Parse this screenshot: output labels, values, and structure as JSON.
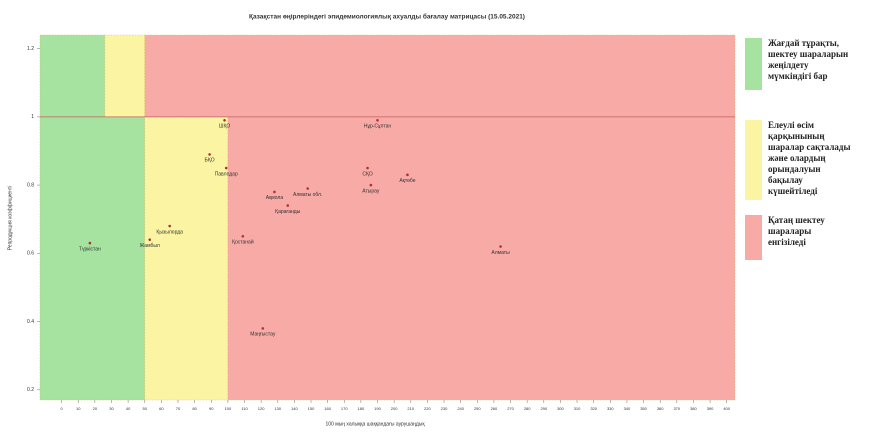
{
  "chart_data": {
    "type": "scatter",
    "title": "Қазақстан өңірлеріндегі эпидемиологиялық ахуалды бағалау матрицасы (15.05.2021)",
    "x_label": "100 мың халыққа шаққандағы аурушаңдық",
    "y_label": "Репродукция коэффициенті",
    "xlim": [
      -13,
      405
    ],
    "ylim": [
      0.17,
      1.24
    ],
    "xticks": [
      0,
      10,
      20,
      30,
      40,
      50,
      60,
      70,
      80,
      90,
      100,
      110,
      120,
      130,
      140,
      150,
      160,
      170,
      180,
      190,
      200,
      210,
      220,
      230,
      240,
      250,
      260,
      270,
      280,
      290,
      300,
      310,
      320,
      330,
      340,
      350,
      360,
      370,
      380,
      390,
      400
    ],
    "yticks": [
      0.2,
      0.4,
      0.6,
      0.8,
      1,
      1.2
    ],
    "hline": 1,
    "point_color": "#b03030",
    "zones": [
      {
        "name": "Жағдай тұрақты, шектеу шараларын жеңілдету мүмкіндігі бар",
        "color": "#a6e3a1",
        "rects": [
          [
            -13,
            50,
            0.17,
            1
          ],
          [
            -13,
            26,
            1,
            1.24
          ]
        ]
      },
      {
        "name": "Елеулі өсім қарқынының шаралар сақталады және олардың орындалуын бақылау күшейтіледі",
        "color": "#fbf5a3",
        "rects": [
          [
            50,
            100,
            0.17,
            1
          ],
          [
            26,
            50,
            1,
            1.24
          ]
        ]
      },
      {
        "name": "Қатаң шектеу шаралары енгізіледі",
        "color": "#f7aaa6",
        "rects": [
          [
            100,
            405,
            0.17,
            1
          ],
          [
            50,
            405,
            1,
            1.24
          ]
        ]
      }
    ],
    "points": {
      "labels": [
        "Түркістан",
        "Жамбыл",
        "Қызылорда",
        "ШҚО",
        "БҚО",
        "Павлодар",
        "Қостанай",
        "Маңғыстау",
        "Ақмола",
        "Қарағанды",
        "Алматы обл.",
        "Нұр-Сұлтан",
        "СҚО",
        "Атырау",
        "Ақтөбе",
        "Алматы"
      ],
      "x": [
        17,
        53,
        65,
        98,
        89,
        99,
        109,
        121,
        128,
        136,
        148,
        190,
        184,
        186,
        208,
        264
      ],
      "y": [
        0.63,
        0.64,
        0.68,
        0.99,
        0.89,
        0.85,
        0.65,
        0.38,
        0.78,
        0.74,
        0.79,
        0.99,
        0.85,
        0.8,
        0.83,
        0.62
      ]
    }
  }
}
